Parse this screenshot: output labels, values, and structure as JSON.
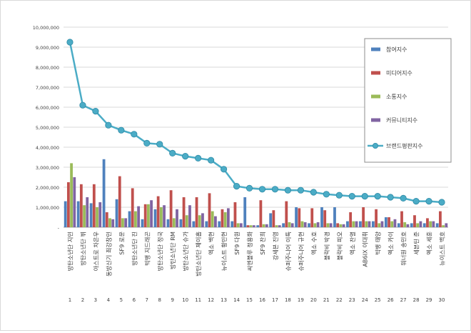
{
  "chart_data": {
    "type": "bar",
    "title": "",
    "xlabel": "",
    "ylabel": "",
    "ylim": [
      0,
      10000000
    ],
    "yticks": [
      0,
      1000000,
      2000000,
      3000000,
      4000000,
      5000000,
      6000000,
      7000000,
      8000000,
      9000000,
      10000000
    ],
    "ytick_labels": [
      "-",
      "1,000,000",
      "2,000,000",
      "3,000,000",
      "4,000,000",
      "5,000,000",
      "6,000,000",
      "7,000,000",
      "8,000,000",
      "9,000,000",
      "10,000,000"
    ],
    "grid": true,
    "legend_position": "right",
    "ranks": [
      "1",
      "2",
      "3",
      "4",
      "5",
      "6",
      "7",
      "8",
      "9",
      "10",
      "11",
      "12",
      "13",
      "14",
      "15",
      "16",
      "17",
      "18",
      "19",
      "20",
      "21",
      "22",
      "23",
      "24",
      "25",
      "26",
      "27",
      "28",
      "29",
      "30"
    ],
    "categories": [
      "방탄소년단 지민",
      "방탄소년단 뷔",
      "아스트로 차은우",
      "동방신기 최강창민",
      "SF9 로운",
      "방탄소년단 진",
      "빅뱅 지드래곤",
      "방탄소년단 정국",
      "방탄소년단 RM",
      "방탄소년단 슈가",
      "방탄소년단 제이홉",
      "엑소 백현",
      "뉴이스트 황민현",
      "SF9 다원",
      "씨엔블루 정용화",
      "SF9 찬희",
      "강세븐 진영",
      "슈퍼주니어 이특",
      "슈퍼주니어 규현",
      "엑소 수호",
      "블락비 박경",
      "블락비 피오",
      "엑소 찬열",
      "AB6IX 이대휘",
      "빅뱅 태양",
      "엑소 카이",
      "워너원 송민호",
      "세븐틴 준",
      "엑소 세훈",
      "뉴이스트 백호"
    ],
    "series": [
      {
        "name": "참여지수",
        "type": "bar",
        "color": "#4f81bd",
        "values": [
          1300000,
          1300000,
          1200000,
          3400000,
          1400000,
          800000,
          400000,
          900000,
          400000,
          400000,
          300000,
          300000,
          300000,
          300000,
          1500000,
          100000,
          700000,
          200000,
          1000000,
          200000,
          1000000,
          1000000,
          300000,
          300000,
          300000,
          500000,
          200000,
          200000,
          200000,
          200000
        ]
      },
      {
        "name": "미디어지수",
        "type": "bar",
        "color": "#c0504d",
        "values": [
          2250000,
          2150000,
          2150000,
          750000,
          2550000,
          1950000,
          1150000,
          1550000,
          1850000,
          1500000,
          1500000,
          1700000,
          900000,
          1250000,
          100000,
          1350000,
          850000,
          1300000,
          950000,
          950000,
          850000,
          200000,
          750000,
          1000000,
          900000,
          500000,
          800000,
          600000,
          450000,
          800000
        ]
      },
      {
        "name": "소통지수",
        "type": "bar",
        "color": "#9bbb59",
        "values": [
          3200000,
          1100000,
          1000000,
          450000,
          450000,
          800000,
          1150000,
          1000000,
          450000,
          600000,
          600000,
          800000,
          750000,
          200000,
          100000,
          150000,
          100000,
          250000,
          300000,
          200000,
          200000,
          150000,
          300000,
          300000,
          200000,
          300000,
          250000,
          200000,
          300000,
          100000
        ]
      },
      {
        "name": "커뮤니티지수",
        "type": "bar",
        "color": "#8064a2",
        "values": [
          2500000,
          1500000,
          1250000,
          400000,
          450000,
          1050000,
          1350000,
          1100000,
          900000,
          1100000,
          700000,
          550000,
          950000,
          200000,
          100000,
          150000,
          100000,
          200000,
          250000,
          250000,
          200000,
          150000,
          300000,
          300000,
          300000,
          400000,
          150000,
          300000,
          300000,
          200000
        ]
      },
      {
        "name": "브랜드평판지수",
        "type": "line",
        "color": "#4bacc6",
        "values": [
          9250000,
          6100000,
          5800000,
          5100000,
          4850000,
          4650000,
          4200000,
          4150000,
          3700000,
          3550000,
          3450000,
          3350000,
          2900000,
          2050000,
          1950000,
          1900000,
          1900000,
          1850000,
          1850000,
          1750000,
          1650000,
          1600000,
          1550000,
          1550000,
          1550000,
          1500000,
          1450000,
          1300000,
          1300000,
          1250000
        ]
      }
    ]
  }
}
